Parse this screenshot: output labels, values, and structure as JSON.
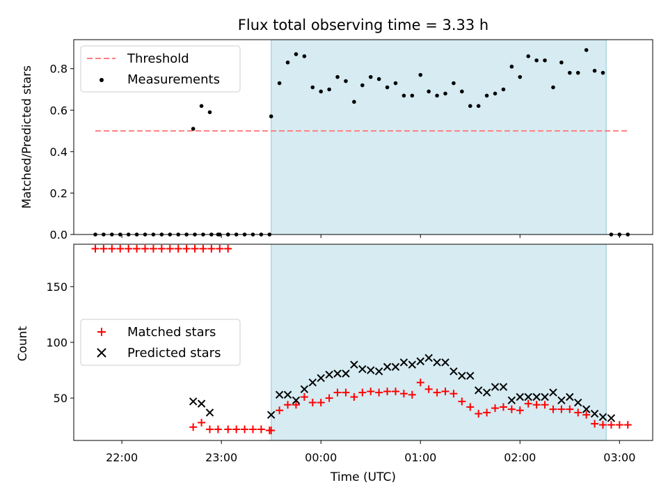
{
  "chart_data": {
    "title": "Flux total observing time = 3.33 h",
    "shaded_interval": {
      "start": "23:30",
      "end": "02:52",
      "color": "#add8e6"
    },
    "x_axis": {
      "label": "Time (UTC)",
      "ticks": [
        "22:00",
        "23:00",
        "00:00",
        "01:00",
        "02:00",
        "03:00"
      ],
      "range": [
        "21:31",
        "03:20"
      ]
    },
    "panels": [
      {
        "type": "scatter",
        "ylabel": "Matched/Predicted stars",
        "ylim": [
          0,
          0.94
        ],
        "yticks": [
          "0.0",
          "0.2",
          "0.4",
          "0.6",
          "0.8"
        ],
        "legend": {
          "placement": "top-left",
          "entries": [
            "Threshold",
            "Measurements"
          ]
        },
        "threshold": {
          "name": "Threshold",
          "value": 0.5,
          "x_start": "21:44",
          "x_end": "03:05",
          "color": "#ff7f7f"
        },
        "measurements": {
          "name": "Measurements",
          "color": "#000000",
          "x": [
            "21:44",
            "21:49",
            "21:54",
            "21:59",
            "22:04",
            "22:09",
            "22:14",
            "22:19",
            "22:24",
            "22:29",
            "22:34",
            "22:39",
            "22:44",
            "22:49",
            "22:54",
            "22:59",
            "23:04",
            "22:43",
            "22:48",
            "22:53",
            "22:58",
            "23:04",
            "23:09",
            "23:14",
            "23:19",
            "23:24",
            "23:29",
            "23:30",
            "23:35",
            "23:40",
            "23:45",
            "23:50",
            "23:55",
            "24:00",
            "24:05",
            "24:10",
            "24:15",
            "24:20",
            "24:25",
            "24:30",
            "24:35",
            "24:40",
            "24:45",
            "24:50",
            "24:55",
            "25:00",
            "25:05",
            "25:10",
            "25:15",
            "25:20",
            "25:25",
            "25:30",
            "25:35",
            "25:40",
            "25:45",
            "25:50",
            "25:55",
            "26:00",
            "26:05",
            "26:10",
            "26:15",
            "26:20",
            "26:25",
            "26:30",
            "26:35",
            "26:40",
            "26:45",
            "26:50",
            "26:55",
            "27:00",
            "27:05"
          ],
          "y": [
            0,
            0,
            0,
            0,
            0,
            0,
            0,
            0,
            0,
            0,
            0,
            0,
            0,
            0,
            0,
            0,
            0,
            0.51,
            0.62,
            0.59,
            0,
            0,
            0,
            0,
            0,
            0,
            0,
            0.57,
            0.73,
            0.83,
            0.87,
            0.86,
            0.71,
            0.69,
            0.7,
            0.76,
            0.74,
            0.64,
            0.72,
            0.76,
            0.75,
            0.71,
            0.73,
            0.67,
            0.67,
            0.77,
            0.69,
            0.67,
            0.68,
            0.73,
            0.69,
            0.62,
            0.62,
            0.67,
            0.68,
            0.7,
            0.81,
            0.76,
            0.86,
            0.84,
            0.84,
            0.71,
            0.83,
            0.78,
            0.78,
            0.89,
            0.79,
            0.78,
            0,
            0,
            0
          ]
        }
      },
      {
        "type": "scatter",
        "ylabel": "Count",
        "ylim": [
          12,
          188
        ],
        "yticks": [
          "50",
          "100",
          "150"
        ],
        "legend": {
          "placement": "center-left",
          "entries": [
            "Matched stars",
            "Predicted stars"
          ]
        },
        "series": [
          {
            "name": "Matched stars",
            "marker": "plus",
            "color": "#ff0000",
            "x": [
              "21:44",
              "21:49",
              "21:54",
              "21:59",
              "22:04",
              "22:09",
              "22:14",
              "22:19",
              "22:24",
              "22:29",
              "22:34",
              "22:39",
              "22:44",
              "22:49",
              "22:54",
              "22:59",
              "23:04",
              "22:43",
              "22:48",
              "22:53",
              "22:58",
              "23:04",
              "23:09",
              "23:14",
              "23:19",
              "23:24",
              "23:29",
              "23:30",
              "23:35",
              "23:40",
              "23:45",
              "23:50",
              "23:55",
              "24:00",
              "24:05",
              "24:10",
              "24:15",
              "24:20",
              "24:25",
              "24:30",
              "24:35",
              "24:40",
              "24:45",
              "24:50",
              "24:55",
              "25:00",
              "25:05",
              "25:10",
              "25:15",
              "25:20",
              "25:25",
              "25:30",
              "25:35",
              "25:40",
              "25:45",
              "25:50",
              "25:55",
              "26:00",
              "26:05",
              "26:10",
              "26:15",
              "26:20",
              "26:25",
              "26:30",
              "26:35",
              "26:40",
              "26:45",
              "26:50",
              "26:55",
              "27:00",
              "27:05"
            ],
            "y": [
              184,
              184,
              184,
              184,
              184,
              184,
              184,
              184,
              184,
              184,
              184,
              184,
              184,
              184,
              184,
              184,
              184,
              24,
              28,
              22,
              22,
              22,
              22,
              22,
              22,
              22,
              21,
              21,
              39,
              44,
              44,
              51,
              46,
              46,
              50,
              55,
              55,
              51,
              55,
              56,
              55,
              56,
              56,
              54,
              53,
              64,
              58,
              55,
              56,
              54,
              47,
              42,
              36,
              37,
              41,
              42,
              40,
              39,
              45,
              44,
              44,
              40,
              40,
              40,
              37,
              35,
              27,
              26,
              26,
              26,
              26
            ]
          },
          {
            "name": "Predicted stars",
            "marker": "x",
            "color": "#000000",
            "x": [
              "22:43",
              "22:48",
              "22:53",
              "23:30",
              "23:35",
              "23:40",
              "23:45",
              "23:50",
              "23:55",
              "24:00",
              "24:05",
              "24:10",
              "24:15",
              "24:20",
              "24:25",
              "24:30",
              "24:35",
              "24:40",
              "24:45",
              "24:50",
              "24:55",
              "25:00",
              "25:05",
              "25:10",
              "25:15",
              "25:20",
              "25:25",
              "25:30",
              "25:35",
              "25:40",
              "25:45",
              "25:50",
              "25:55",
              "26:00",
              "26:05",
              "26:10",
              "26:15",
              "26:20",
              "26:25",
              "26:30",
              "26:35",
              "26:40",
              "26:45",
              "26:50",
              "26:55"
            ],
            "y": [
              47,
              45,
              37,
              35,
              53,
              53,
              48,
              58,
              64,
              68,
              71,
              72,
              72,
              80,
              76,
              75,
              74,
              78,
              78,
              82,
              80,
              83,
              86,
              82,
              82,
              74,
              70,
              70,
              57,
              55,
              60,
              60,
              48,
              51,
              51,
              51,
              51,
              55,
              48,
              51,
              46,
              40,
              36,
              33,
              32
            ]
          }
        ]
      }
    ]
  }
}
